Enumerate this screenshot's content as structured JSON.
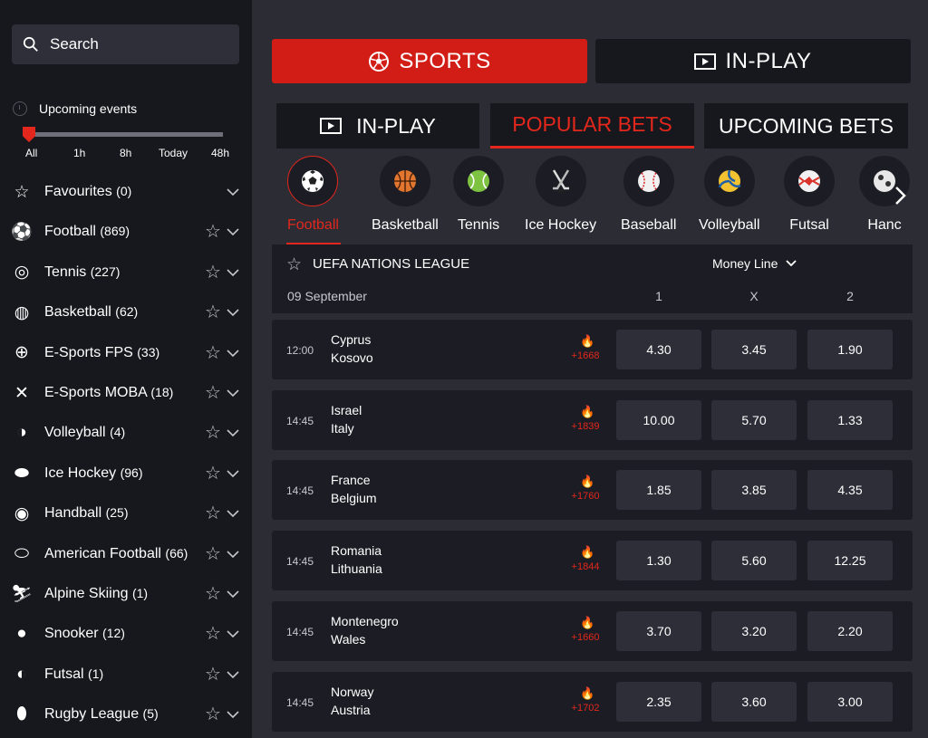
{
  "sidebar": {
    "search_label": "Search",
    "upcoming_label": "Upcoming events",
    "slider_labels": [
      "All",
      "1h",
      "8h",
      "Today",
      "48h"
    ],
    "items": [
      {
        "name": "Favourites",
        "count": "(0)",
        "icon": "star-icon"
      },
      {
        "name": "Football",
        "count": "(869)",
        "icon": "football-icon"
      },
      {
        "name": "Tennis",
        "count": "(227)",
        "icon": "tennis-icon"
      },
      {
        "name": "Basketball",
        "count": "(62)",
        "icon": "basketball-icon"
      },
      {
        "name": "E-Sports FPS",
        "count": "(33)",
        "icon": "crosshair-icon"
      },
      {
        "name": "E-Sports MOBA",
        "count": "(18)",
        "icon": "crossed-swords-icon"
      },
      {
        "name": "Volleyball",
        "count": "(4)",
        "icon": "volleyball-icon"
      },
      {
        "name": "Ice Hockey",
        "count": "(96)",
        "icon": "puck-icon"
      },
      {
        "name": "Handball",
        "count": "(25)",
        "icon": "handball-icon"
      },
      {
        "name": "American Football",
        "count": "(66)",
        "icon": "american-football-icon"
      },
      {
        "name": "Alpine Skiing",
        "count": "(1)",
        "icon": "skiing-icon"
      },
      {
        "name": "Snooker",
        "count": "(12)",
        "icon": "snooker-ball-icon"
      },
      {
        "name": "Futsal",
        "count": "(1)",
        "icon": "futsal-icon"
      },
      {
        "name": "Rugby League",
        "count": "(5)",
        "icon": "rugby-ball-icon"
      }
    ]
  },
  "top_tabs": {
    "sports": "SPORTS",
    "inplay": "IN-PLAY"
  },
  "sub_tabs": {
    "inplay": "IN-PLAY",
    "popular": "POPULAR BETS",
    "upcoming": "UPCOMING BETS"
  },
  "sport_categories": [
    "Football",
    "Basketball",
    "Tennis",
    "Ice Hockey",
    "Baseball",
    "Volleyball",
    "Futsal",
    "Hanc"
  ],
  "league": {
    "name": "UEFA NATIONS LEAGUE",
    "market": "Money Line",
    "date": "09 September",
    "columns": [
      "1",
      "X",
      "2"
    ]
  },
  "matches": [
    {
      "time": "12:00",
      "home": "Cyprus",
      "away": "Kosovo",
      "bets": "+1668",
      "odds": [
        "4.30",
        "3.45",
        "1.90"
      ]
    },
    {
      "time": "14:45",
      "home": "Israel",
      "away": "Italy",
      "bets": "+1839",
      "odds": [
        "10.00",
        "5.70",
        "1.33"
      ]
    },
    {
      "time": "14:45",
      "home": "France",
      "away": "Belgium",
      "bets": "+1760",
      "odds": [
        "1.85",
        "3.85",
        "4.35"
      ]
    },
    {
      "time": "14:45",
      "home": "Romania",
      "away": "Lithuania",
      "bets": "+1844",
      "odds": [
        "1.30",
        "5.60",
        "12.25"
      ]
    },
    {
      "time": "14:45",
      "home": "Montenegro",
      "away": "Wales",
      "bets": "+1660",
      "odds": [
        "3.70",
        "3.20",
        "2.20"
      ]
    },
    {
      "time": "14:45",
      "home": "Norway",
      "away": "Austria",
      "bets": "+1702",
      "odds": [
        "2.35",
        "3.60",
        "3.00"
      ]
    }
  ],
  "colors": {
    "accent": "#d11d16",
    "background": "#2b2c34",
    "panel": "#17181e"
  }
}
